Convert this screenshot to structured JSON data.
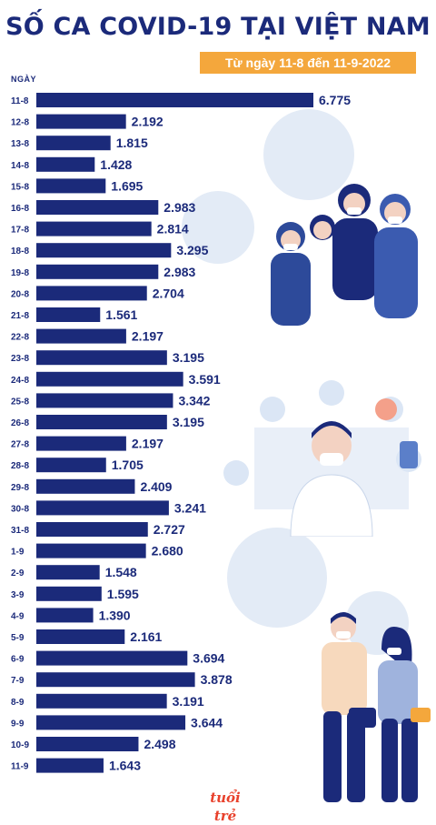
{
  "header": {
    "title": "SỐ CA COVID-19 TẠI VIỆT NAM",
    "subtitle": "Từ ngày 11-8 đến 11-9-2022"
  },
  "brand": {
    "logo_text": "tuổi trẻ"
  },
  "colors": {
    "bar": "#1b2a7a",
    "accent": "#f4a73c",
    "background_virus": "#e3ebf6"
  },
  "chart_data": {
    "type": "bar",
    "orientation": "horizontal",
    "ylabel": "NGÀY",
    "xlabel": "",
    "categories": [
      "11-8",
      "12-8",
      "13-8",
      "14-8",
      "15-8",
      "16-8",
      "17-8",
      "18-8",
      "19-8",
      "20-8",
      "21-8",
      "22-8",
      "23-8",
      "24-8",
      "25-8",
      "26-8",
      "27-8",
      "28-8",
      "29-8",
      "30-8",
      "31-8",
      "1-9",
      "2-9",
      "3-9",
      "4-9",
      "5-9",
      "6-9",
      "7-9",
      "8-9",
      "9-9",
      "10-9",
      "11-9"
    ],
    "values": [
      6775,
      2192,
      1815,
      1428,
      1695,
      2983,
      2814,
      3295,
      2983,
      2704,
      1561,
      2197,
      3195,
      3591,
      3342,
      3195,
      2197,
      1705,
      2409,
      3241,
      2727,
      2680,
      1548,
      1595,
      1390,
      2161,
      3694,
      3878,
      3191,
      3644,
      2498,
      1643
    ],
    "value_labels": [
      "6.775",
      "2.192",
      "1.815",
      "1.428",
      "1.695",
      "2.983",
      "2.814",
      "3.295",
      "2.983",
      "2.704",
      "1.561",
      "2.197",
      "3.195",
      "3.591",
      "3.342",
      "3.195",
      "2.197",
      "1.705",
      "2.409",
      "3.241",
      "2.727",
      "2.680",
      "1.548",
      "1.595",
      "1.390",
      "2.161",
      "3.694",
      "3.878",
      "3.191",
      "3.644",
      "2.498",
      "1.643"
    ],
    "grid": false,
    "legend": "none"
  }
}
